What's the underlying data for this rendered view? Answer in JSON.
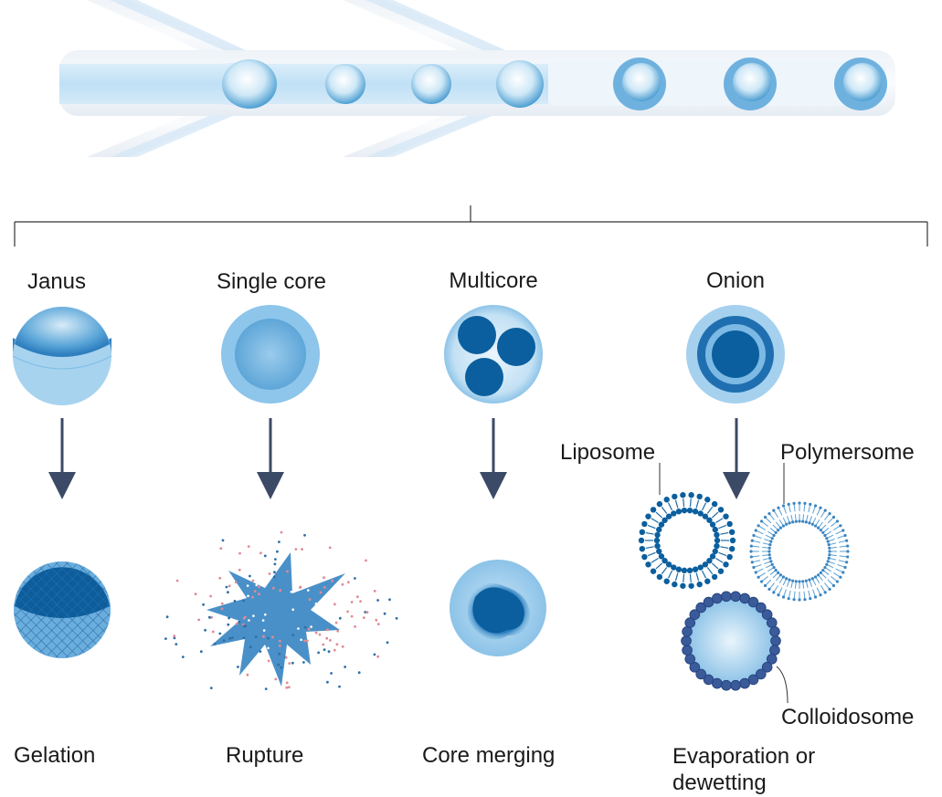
{
  "labels": {
    "janus": "Janus",
    "single_core": "Single core",
    "multicore": "Multicore",
    "onion": "Onion",
    "gelation": "Gelation",
    "rupture": "Rupture",
    "core_merging": "Core merging",
    "evaporation_line1": "Evaporation or",
    "evaporation_line2": "dewetting",
    "liposome": "Liposome",
    "polymersome": "Polymersome",
    "colloidosome": "Colloidosome"
  },
  "colors": {
    "light_blue": "#a6d2ee",
    "mid_blue": "#5da5d6",
    "dark_blue": "#0b5f9e",
    "arrow": "#3b4a66",
    "rupture_pink": "#e28a93"
  }
}
